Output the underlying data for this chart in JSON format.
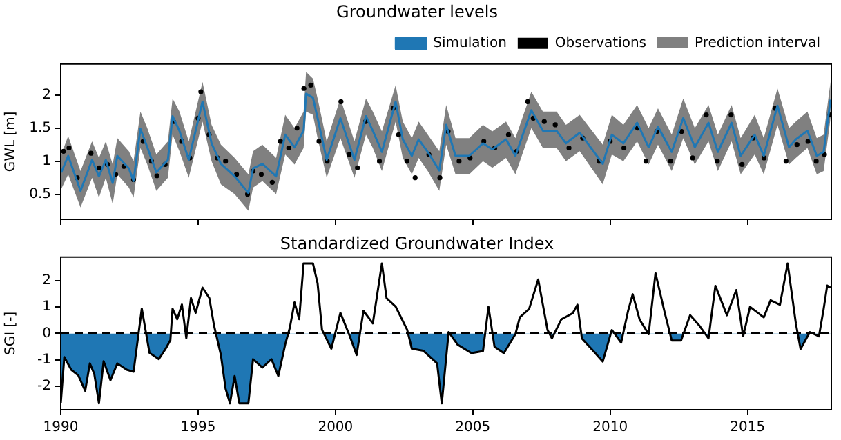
{
  "chart_data": [
    {
      "type": "line",
      "title": "Groundwater levels",
      "ylabel": "GWL [m]",
      "xlim": [
        1990,
        2018.05
      ],
      "xticks": [
        1990,
        1995,
        2000,
        2005,
        2010,
        2015
      ],
      "ylim": [
        0.12,
        2.47
      ],
      "yticks": [
        0.5,
        1.0,
        1.5,
        2.0
      ],
      "tick_labels": "y",
      "grid": false,
      "legend": "top right",
      "annotations": [
        "Prediction interval"
      ],
      "series": [
        {
          "name": "Simulation",
          "color": "#1f77b4",
          "x": [
            1990.02,
            1990.27,
            1990.72,
            1991.14,
            1991.39,
            1991.64,
            1991.89,
            1992.06,
            1992.48,
            1992.65,
            1992.9,
            1993.15,
            1993.48,
            1993.9,
            1994.07,
            1994.32,
            1994.66,
            1995.16,
            1995.49,
            1995.83,
            1996.33,
            1996.83,
            1997.0,
            1997.34,
            1997.84,
            1998.17,
            1998.51,
            1998.84,
            1998.93,
            1999.18,
            1999.35,
            1999.68,
            2000.18,
            2000.69,
            2001.11,
            2001.36,
            2001.69,
            2002.19,
            2002.45,
            2002.78,
            2003.03,
            2003.36,
            2003.78,
            2004.03,
            2004.37,
            2004.87,
            2005.37,
            2005.71,
            2006.21,
            2006.55,
            2007.13,
            2007.55,
            2008.05,
            2008.39,
            2008.89,
            2009.73,
            2010.06,
            2010.48,
            2010.98,
            2011.4,
            2011.74,
            2012.24,
            2012.66,
            2013.08,
            2013.58,
            2013.92,
            2014.42,
            2014.75,
            2015.26,
            2015.59,
            2016.09,
            2016.51,
            2016.76,
            2017.18,
            2017.52,
            2017.77,
            2018.02
          ],
          "values": [
            0.83,
            1.08,
            0.55,
            1.02,
            0.77,
            1.02,
            0.67,
            1.08,
            0.89,
            0.7,
            1.49,
            1.21,
            0.83,
            1.02,
            1.68,
            1.46,
            1.02,
            1.9,
            1.27,
            0.96,
            0.77,
            0.52,
            0.89,
            0.96,
            0.77,
            1.4,
            1.21,
            1.46,
            2.02,
            1.96,
            1.65,
            1.02,
            1.65,
            1.02,
            1.68,
            1.46,
            1.14,
            1.9,
            1.33,
            1.08,
            1.33,
            1.14,
            0.86,
            1.55,
            1.08,
            1.08,
            1.27,
            1.18,
            1.33,
            1.08,
            1.77,
            1.46,
            1.46,
            1.27,
            1.43,
            0.96,
            1.4,
            1.27,
            1.58,
            1.21,
            1.52,
            1.14,
            1.65,
            1.21,
            1.58,
            1.14,
            1.58,
            1.08,
            1.4,
            1.08,
            1.84,
            1.21,
            1.33,
            1.46,
            1.08,
            1.14,
            1.93
          ],
          "lower": [
            0.58,
            0.8,
            0.3,
            0.75,
            0.45,
            0.75,
            0.35,
            0.8,
            0.6,
            0.45,
            1.2,
            0.95,
            0.55,
            0.75,
            1.4,
            1.15,
            0.75,
            1.6,
            1.0,
            0.65,
            0.5,
            0.25,
            0.6,
            0.7,
            0.5,
            1.1,
            0.95,
            1.2,
            1.75,
            1.7,
            1.35,
            0.75,
            1.35,
            0.75,
            1.4,
            1.2,
            0.85,
            1.6,
            1.05,
            0.8,
            1.05,
            0.85,
            0.55,
            1.25,
            0.8,
            0.8,
            1.0,
            0.9,
            1.05,
            0.8,
            1.5,
            1.2,
            1.2,
            1.0,
            1.15,
            0.65,
            1.1,
            1.0,
            1.3,
            0.95,
            1.25,
            0.85,
            1.35,
            0.95,
            1.3,
            0.85,
            1.3,
            0.8,
            1.1,
            0.8,
            1.55,
            0.95,
            1.05,
            1.2,
            0.8,
            0.85,
            1.65
          ],
          "upper": [
            1.1,
            1.38,
            0.85,
            1.3,
            1.05,
            1.3,
            0.95,
            1.35,
            1.15,
            1.0,
            1.75,
            1.5,
            1.1,
            1.3,
            1.95,
            1.75,
            1.3,
            2.2,
            1.55,
            1.25,
            1.05,
            0.8,
            1.15,
            1.25,
            1.05,
            1.7,
            1.5,
            1.75,
            2.35,
            2.25,
            1.95,
            1.3,
            1.95,
            1.3,
            1.95,
            1.75,
            1.45,
            2.15,
            1.6,
            1.35,
            1.6,
            1.4,
            1.15,
            1.85,
            1.35,
            1.35,
            1.55,
            1.45,
            1.6,
            1.35,
            2.05,
            1.75,
            1.75,
            1.55,
            1.7,
            1.25,
            1.7,
            1.55,
            1.85,
            1.5,
            1.8,
            1.4,
            1.95,
            1.5,
            1.85,
            1.4,
            1.85,
            1.35,
            1.7,
            1.35,
            2.1,
            1.5,
            1.6,
            1.75,
            1.35,
            1.4,
            2.2
          ]
        },
        {
          "name": "Observations",
          "type": "scatter",
          "color": "#000000",
          "marker": "circle",
          "x": [
            1990.1,
            1990.3,
            1990.6,
            1991.1,
            1991.4,
            1991.7,
            1992.0,
            1992.3,
            1992.65,
            1993.0,
            1993.3,
            1993.5,
            1993.8,
            1994.1,
            1994.4,
            1994.7,
            1995.0,
            1995.1,
            1995.4,
            1995.7,
            1996.0,
            1996.4,
            1996.8,
            1997.0,
            1997.3,
            1997.7,
            1998.0,
            1998.3,
            1998.6,
            1998.85,
            1999.1,
            1999.4,
            1999.7,
            2000.2,
            2000.5,
            2000.8,
            2001.1,
            2001.6,
            2002.1,
            2002.3,
            2002.6,
            2002.9,
            2003.4,
            2003.8,
            2004.1,
            2004.5,
            2004.9,
            2005.4,
            2005.8,
            2006.3,
            2006.6,
            2007.0,
            2007.2,
            2007.6,
            2008.0,
            2008.5,
            2009.0,
            2009.6,
            2010.0,
            2010.5,
            2011.0,
            2011.3,
            2011.7,
            2012.2,
            2012.6,
            2013.0,
            2013.5,
            2013.9,
            2014.4,
            2014.8,
            2015.2,
            2015.6,
            2016.0,
            2016.4,
            2016.8,
            2017.2,
            2017.5,
            2017.8,
            2018.0
          ],
          "values": [
            1.15,
            1.2,
            0.75,
            1.12,
            0.9,
            0.95,
            0.8,
            0.92,
            0.72,
            1.3,
            1.0,
            0.78,
            0.95,
            1.6,
            1.3,
            1.05,
            1.65,
            2.05,
            1.4,
            1.05,
            1.0,
            0.8,
            0.5,
            0.85,
            0.8,
            0.68,
            1.3,
            1.2,
            1.5,
            2.1,
            2.15,
            1.3,
            1.0,
            1.9,
            1.1,
            0.9,
            1.6,
            1.0,
            1.8,
            1.4,
            1.0,
            0.75,
            1.1,
            0.75,
            1.45,
            1.0,
            1.05,
            1.3,
            1.2,
            1.4,
            1.15,
            1.9,
            1.65,
            1.6,
            1.55,
            1.2,
            1.35,
            1.0,
            1.3,
            1.2,
            1.5,
            1.0,
            1.45,
            1.0,
            1.45,
            1.05,
            1.7,
            1.0,
            1.7,
            0.95,
            1.35,
            1.05,
            1.8,
            1.0,
            1.25,
            1.3,
            1.0,
            1.1,
            1.7
          ]
        }
      ]
    },
    {
      "type": "area",
      "title": "Standardized Groundwater Index",
      "ylabel": "SGI [-]",
      "xlim": [
        1990,
        2018.05
      ],
      "xticks": [
        1990,
        1995,
        2000,
        2005,
        2010,
        2015
      ],
      "ylim": [
        -2.9,
        2.9
      ],
      "yticks": [
        -2,
        -1,
        0,
        1,
        2
      ],
      "grid": false,
      "ref_lines": [
        {
          "axis": "y",
          "value": 0,
          "color": "#000000",
          "line_style": "dashed"
        }
      ],
      "series": [
        {
          "color": "#1f77b4",
          "x": [
            1990.0,
            1990.13,
            1990.38,
            1990.64,
            1990.89,
            1991.06,
            1991.22,
            1991.39,
            1991.56,
            1991.81,
            1992.06,
            1992.4,
            1992.65,
            1992.81,
            1992.95,
            1993.07,
            1993.23,
            1993.57,
            1993.82,
            1993.99,
            1994.07,
            1994.24,
            1994.41,
            1994.57,
            1994.74,
            1994.91,
            1995.16,
            1995.41,
            1995.58,
            1995.83,
            1996.0,
            1996.16,
            1996.33,
            1996.5,
            1996.83,
            1997.0,
            1997.34,
            1997.67,
            1997.92,
            1998.17,
            1998.34,
            1998.51,
            1998.68,
            1998.84,
            1999.18,
            1999.35,
            1999.51,
            1999.85,
            2000.18,
            2000.52,
            2000.77,
            2001.02,
            2001.36,
            2001.69,
            2001.86,
            2002.19,
            2002.61,
            2002.78,
            2003.2,
            2003.7,
            2003.87,
            2004.12,
            2004.45,
            2004.95,
            2005.37,
            2005.57,
            2005.79,
            2006.13,
            2006.55,
            2006.71,
            2007.05,
            2007.38,
            2007.72,
            2007.88,
            2008.22,
            2008.64,
            2008.81,
            2008.97,
            2009.39,
            2009.73,
            2010.06,
            2010.4,
            2010.65,
            2010.82,
            2011.07,
            2011.4,
            2011.65,
            2011.99,
            2012.24,
            2012.58,
            2012.91,
            2013.25,
            2013.58,
            2013.83,
            2014.25,
            2014.59,
            2014.84,
            2015.09,
            2015.59,
            2015.84,
            2016.18,
            2016.46,
            2016.76,
            2016.93,
            2017.27,
            2017.6,
            2017.77,
            2017.9,
            2018.02
          ],
          "values": [
            -2.66,
            -0.9,
            -1.38,
            -1.6,
            -2.18,
            -1.14,
            -1.54,
            -2.66,
            -1.06,
            -1.78,
            -1.14,
            -1.38,
            -1.46,
            -0.18,
            0.94,
            0.22,
            -0.74,
            -0.98,
            -0.58,
            -0.26,
            0.94,
            0.54,
            1.1,
            -0.18,
            1.34,
            0.78,
            1.74,
            1.34,
            0.3,
            -0.82,
            -2.1,
            -2.66,
            -1.62,
            -2.66,
            -2.66,
            -0.98,
            -1.3,
            -0.98,
            -1.62,
            -0.42,
            0.22,
            1.18,
            0.54,
            2.66,
            2.66,
            1.9,
            0.14,
            -0.58,
            0.78,
            -0.1,
            -0.82,
            0.86,
            0.38,
            2.66,
            1.34,
            1.02,
            0.14,
            -0.58,
            -0.66,
            -1.14,
            -2.66,
            0.05,
            -0.43,
            -0.75,
            -0.67,
            1.01,
            -0.51,
            -0.75,
            -0.03,
            0.61,
            0.93,
            2.05,
            0.13,
            -0.19,
            0.53,
            0.77,
            1.09,
            -0.19,
            -0.67,
            -1.07,
            0.13,
            -0.35,
            0.85,
            1.49,
            0.53,
            -0.03,
            2.29,
            0.77,
            -0.27,
            -0.27,
            0.69,
            0.29,
            -0.19,
            1.81,
            0.69,
            1.65,
            -0.11,
            1.01,
            0.61,
            1.26,
            1.09,
            2.66,
            0.37,
            -0.59,
            0.05,
            -0.11,
            0.93,
            1.82,
            1.74
          ]
        }
      ]
    }
  ]
}
